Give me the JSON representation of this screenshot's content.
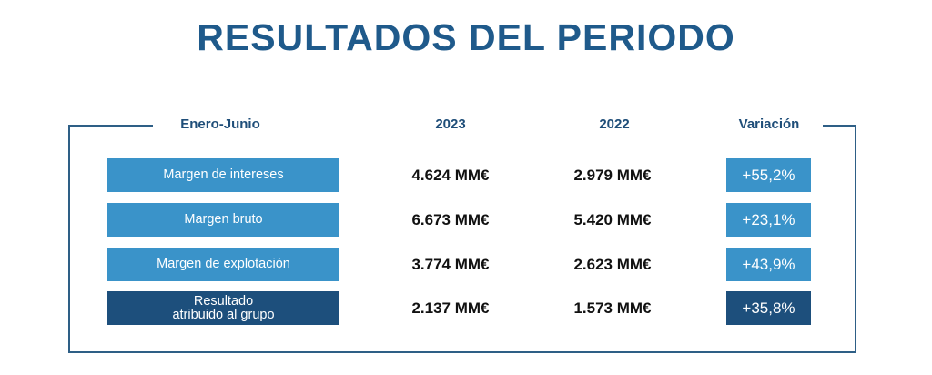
{
  "title": "RESULTADOS DEL PERIODO",
  "header": {
    "period": "Enero-Junio",
    "col_2023": "2023",
    "col_2022": "2022",
    "col_variation": "Variación"
  },
  "rows": [
    {
      "label": "Margen de intereses",
      "v2023": "4.624 MM€",
      "v2022": "2.979 MM€",
      "variation": "+55,2%"
    },
    {
      "label": "Margen bruto",
      "v2023": "6.673 MM€",
      "v2022": "5.420 MM€",
      "variation": "+23,1%"
    },
    {
      "label": "Margen de explotación",
      "v2023": "3.774 MM€",
      "v2022": "2.623 MM€",
      "variation": "+43,9%"
    },
    {
      "label_line1": "Resultado",
      "label_line2": "atribuido al grupo",
      "v2023": "2.137 MM€",
      "v2022": "1.573 MM€",
      "variation": "+35,8%"
    }
  ],
  "colors": {
    "light_box": "#3a93c9",
    "dark_box": "#1d4f7c",
    "title": "#1f5a8b"
  }
}
